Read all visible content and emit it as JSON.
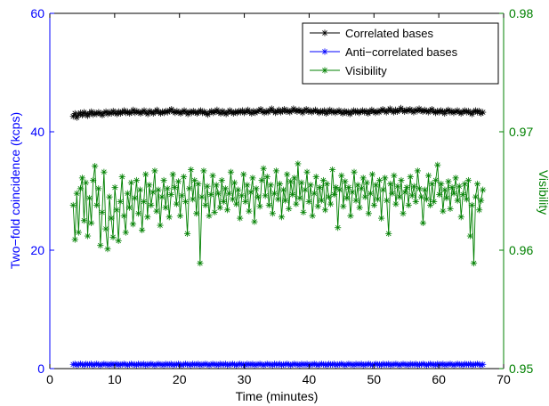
{
  "chart_data": {
    "type": "line",
    "xlabel": "Time (minutes)",
    "ylabel_left": "Two−fold coincidence (kcps)",
    "ylabel_right": "Visibility",
    "xlim": [
      0,
      70
    ],
    "ylim_left": [
      0,
      60
    ],
    "ylim_right": [
      0.95,
      0.98
    ],
    "x_ticks": [
      "0",
      "10",
      "20",
      "30",
      "40",
      "50",
      "60",
      "70"
    ],
    "y_ticks_left": [
      "0",
      "20",
      "40",
      "60"
    ],
    "y_ticks_right": [
      "0.95",
      "0.96",
      "0.97",
      "0.98"
    ],
    "grid": false,
    "legend_position": "top-right",
    "x_range": [
      3.6,
      66.8
    ],
    "series": [
      {
        "name": "Correlated bases",
        "axis": "left",
        "color": "#000000",
        "marker": "asterisk",
        "values": [
          42.6,
          43.1,
          42.4,
          42.9,
          43.2,
          42.8,
          43.3,
          43.0,
          42.7,
          43.1,
          43.4,
          42.9,
          43.2,
          43.0,
          43.3,
          43.1,
          42.8,
          43.2,
          43.4,
          43.0,
          43.3,
          43.1,
          43.5,
          43.2,
          43.0,
          43.4,
          43.1,
          43.3,
          43.6,
          43.2,
          43.4,
          43.1,
          43.3,
          43.7,
          43.2,
          43.5,
          43.3,
          43.1,
          43.4,
          43.6,
          43.2,
          43.0,
          43.5,
          43.3,
          43.1,
          43.4,
          43.7,
          43.3,
          43.1,
          43.4,
          43.2,
          43.5,
          43.3,
          43.6,
          43.8,
          43.4,
          43.2,
          43.5,
          43.3,
          43.1,
          43.4,
          43.6,
          43.3,
          43.0,
          43.4,
          43.2,
          43.5,
          43.3,
          43.1,
          43.4,
          43.6,
          43.2,
          43.4,
          43.1,
          42.9,
          43.3,
          43.5,
          43.2,
          43.4,
          43.7,
          43.3,
          43.1,
          43.5,
          43.2,
          43.0,
          43.3,
          43.6,
          43.3,
          43.1,
          43.4,
          43.2,
          43.5,
          43.3,
          43.6,
          43.2,
          43.4,
          43.7,
          43.3,
          43.1,
          43.5,
          43.2,
          43.4,
          43.6,
          43.8,
          43.4,
          43.2,
          43.5,
          43.3,
          43.6,
          43.9,
          43.5,
          43.2,
          43.4,
          43.7,
          43.3,
          43.5,
          43.8,
          43.4,
          43.6,
          43.3,
          43.5,
          43.9,
          43.6,
          43.4,
          43.7,
          43.5,
          43.2,
          43.6,
          43.8,
          43.4,
          43.6,
          43.3,
          43.5,
          43.7,
          43.4,
          43.2,
          43.5,
          43.3,
          43.6,
          43.1,
          43.4,
          43.7,
          43.3,
          43.5,
          43.2,
          43.4,
          43.6,
          43.3,
          43.1,
          43.5,
          43.2,
          43.4,
          43.0,
          43.3,
          43.6,
          43.3,
          43.5,
          43.2,
          43.4,
          43.6,
          43.3,
          43.5,
          43.1,
          43.4,
          43.7,
          43.4,
          43.2,
          43.5,
          43.3,
          43.6,
          43.8,
          43.5,
          43.3,
          43.6,
          43.9,
          43.5,
          43.3,
          43.7,
          43.4,
          43.6,
          44.0,
          43.6,
          43.4,
          43.7,
          43.5,
          43.8,
          43.5,
          43.3,
          43.7,
          43.5,
          43.9,
          43.6,
          43.4,
          43.7,
          43.5,
          43.3,
          43.6,
          43.8,
          43.4,
          43.2,
          43.5,
          43.3,
          43.6,
          43.4,
          43.1,
          43.5,
          43.7,
          43.3,
          43.5,
          43.2,
          43.4,
          43.6,
          43.3,
          43.1,
          43.4,
          43.6,
          43.3,
          43.5,
          43.2,
          43.0,
          43.4,
          43.6,
          43.3,
          43.5,
          43.1,
          43.3
        ]
      },
      {
        "name": "Anti−correlated bases",
        "axis": "left",
        "color": "#0000ff",
        "marker": "asterisk",
        "values": [
          0.7,
          0.8,
          0.6,
          0.7,
          0.8,
          0.7,
          0.6,
          0.8,
          0.7,
          0.7,
          0.8,
          0.6,
          0.7,
          0.8,
          0.7,
          0.6,
          0.7,
          0.8,
          0.7,
          0.7,
          0.6,
          0.8,
          0.7,
          0.7,
          0.8,
          0.6,
          0.7,
          0.7,
          0.8,
          0.7,
          0.6,
          0.7,
          0.8,
          0.7,
          0.7,
          0.6,
          0.8,
          0.7,
          0.7,
          0.8,
          0.6,
          0.7,
          0.7,
          0.8,
          0.7,
          0.6,
          0.7,
          0.8,
          0.7,
          0.7,
          0.6,
          0.8,
          0.7,
          0.7,
          0.8,
          0.6,
          0.7,
          0.7,
          0.8,
          0.7,
          0.6,
          0.7,
          0.8,
          0.7,
          0.7,
          0.6,
          0.8,
          0.7,
          0.7,
          0.8,
          0.6,
          0.7,
          0.7,
          0.8,
          0.7,
          0.6,
          0.7,
          0.8,
          0.7,
          0.7,
          0.6,
          0.8,
          0.7,
          0.7,
          0.8,
          0.6,
          0.7,
          0.7,
          0.8,
          0.7,
          0.6,
          0.7,
          0.8,
          0.7,
          0.7,
          0.6,
          0.8,
          0.7,
          0.7,
          0.8,
          0.6,
          0.7,
          0.7,
          0.8,
          0.7,
          0.6,
          0.7,
          0.8,
          0.7,
          0.7,
          0.6,
          0.8,
          0.7,
          0.7,
          0.8,
          0.6,
          0.7,
          0.7,
          0.8,
          0.7,
          0.6,
          0.7,
          0.8,
          0.7,
          0.7,
          0.6,
          0.8,
          0.7,
          0.7,
          0.8,
          0.6,
          0.7,
          0.7,
          0.8,
          0.7,
          0.6,
          0.7,
          0.8,
          0.7,
          0.7,
          0.6,
          0.8,
          0.7,
          0.7,
          0.8,
          0.6,
          0.7,
          0.7,
          0.8,
          0.7,
          0.6,
          0.7,
          0.8,
          0.7,
          0.7,
          0.6,
          0.8,
          0.7,
          0.7,
          0.8,
          0.6,
          0.7,
          0.7,
          0.8,
          0.7,
          0.6,
          0.7,
          0.8,
          0.7,
          0.7,
          0.6,
          0.8,
          0.7,
          0.7,
          0.8,
          0.6,
          0.7,
          0.7,
          0.8,
          0.7,
          0.6,
          0.7,
          0.8,
          0.7,
          0.7,
          0.6,
          0.8,
          0.7,
          0.7,
          0.8,
          0.6,
          0.7,
          0.7,
          0.8,
          0.7,
          0.6,
          0.7,
          0.8,
          0.7,
          0.7,
          0.6,
          0.8,
          0.7,
          0.7,
          0.8,
          0.6,
          0.7,
          0.7,
          0.8,
          0.7,
          0.6,
          0.7,
          0.8,
          0.7,
          0.7,
          0.6,
          0.8,
          0.7,
          0.7,
          0.8,
          0.6,
          0.7,
          0.7,
          0.8,
          0.7,
          0.6,
          0.7
        ]
      },
      {
        "name": "Visibility",
        "axis": "right",
        "color": "#008000",
        "marker": "asterisk",
        "values": [
          0.9638,
          0.9609,
          0.9648,
          0.9615,
          0.9652,
          0.9661,
          0.9625,
          0.9657,
          0.9612,
          0.9644,
          0.9623,
          0.9659,
          0.9671,
          0.9638,
          0.9652,
          0.9604,
          0.9632,
          0.9666,
          0.9618,
          0.9601,
          0.9645,
          0.9627,
          0.9611,
          0.9653,
          0.9634,
          0.9608,
          0.9641,
          0.9662,
          0.9629,
          0.9615,
          0.9648,
          0.9636,
          0.9657,
          0.9622,
          0.9644,
          0.9659,
          0.9631,
          0.9651,
          0.9617,
          0.9641,
          0.9664,
          0.9628,
          0.9655,
          0.9638,
          0.9649,
          0.9667,
          0.9633,
          0.9651,
          0.9621,
          0.9645,
          0.9659,
          0.9636,
          0.9652,
          0.9628,
          0.9647,
          0.9664,
          0.9653,
          0.9639,
          0.9658,
          0.9629,
          0.9646,
          0.9662,
          0.9641,
          0.9614,
          0.9652,
          0.9668,
          0.9643,
          0.9659,
          0.9631,
          0.9656,
          0.9589,
          0.9645,
          0.9667,
          0.9638,
          0.9654,
          0.9629,
          0.9647,
          0.9663,
          0.9632,
          0.9655,
          0.9648,
          0.9636,
          0.9659,
          0.9641,
          0.9652,
          0.9634,
          0.9648,
          0.9666,
          0.9643,
          0.9657,
          0.9639,
          0.9651,
          0.9627,
          0.9646,
          0.9664,
          0.9641,
          0.9655,
          0.9633,
          0.9649,
          0.9661,
          0.9624,
          0.9652,
          0.9645,
          0.9637,
          0.9659,
          0.9669,
          0.9646,
          0.9662,
          0.9638,
          0.9655,
          0.9631,
          0.9648,
          0.9667,
          0.9643,
          0.9656,
          0.9628,
          0.9651,
          0.9642,
          0.9664,
          0.9635,
          0.9658,
          0.9647,
          0.9661,
          0.9639,
          0.9673,
          0.9644,
          0.9657,
          0.9632,
          0.9651,
          0.9666,
          0.9641,
          0.9655,
          0.9629,
          0.9648,
          0.9662,
          0.9637,
          0.9653,
          0.9642,
          0.9659,
          0.9634,
          0.9656,
          0.9645,
          0.9639,
          0.9668,
          0.9647,
          0.9653,
          0.9619,
          0.9651,
          0.9663,
          0.9637,
          0.9658,
          0.9644,
          0.9653,
          0.9629,
          0.9649,
          0.9666,
          0.9642,
          0.9655,
          0.9636,
          0.9652,
          0.9661,
          0.9645,
          0.9657,
          0.9631,
          0.9648,
          0.9664,
          0.9638,
          0.9655,
          0.9643,
          0.9659,
          0.9627,
          0.9651,
          0.9661,
          0.9642,
          0.9614,
          0.9656,
          0.9648,
          0.9663,
          0.9639,
          0.9654,
          0.9645,
          0.9659,
          0.9631,
          0.9649,
          0.9653,
          0.9638,
          0.9662,
          0.9646,
          0.9654,
          0.9641,
          0.9667,
          0.9652,
          0.9645,
          0.9623,
          0.9651,
          0.9643,
          0.9663,
          0.9638,
          0.9656,
          0.9641,
          0.9659,
          0.9672,
          0.9647,
          0.9656,
          0.9633,
          0.9651,
          0.9644,
          0.9658,
          0.9635,
          0.9653,
          0.9648,
          0.9661,
          0.9642,
          0.9654,
          0.9628,
          0.9647,
          0.9656,
          0.9643,
          0.9659,
          0.9612,
          0.9638,
          0.9589,
          0.9645,
          0.9656,
          0.9634,
          0.9642,
          0.9651
        ]
      }
    ]
  }
}
